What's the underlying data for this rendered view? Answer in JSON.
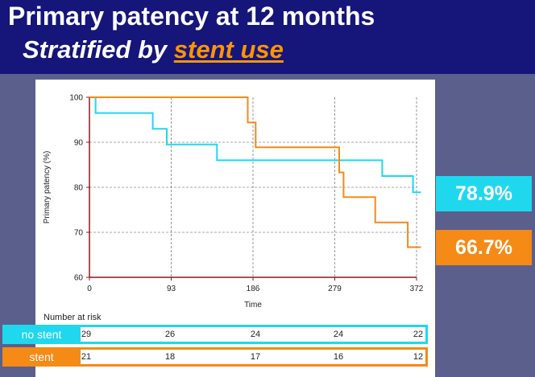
{
  "header": {
    "title": "Primary patency at 12 months",
    "subtitle_prefix": "Stratified by ",
    "subtitle_highlight": "stent use"
  },
  "colors": {
    "header_bg": "#15157a",
    "background": "#5b5f8c",
    "no_stent": "#1fd8ee",
    "stent": "#f58a16"
  },
  "chart_data": {
    "type": "line",
    "step": true,
    "xlabel": "Time",
    "ylabel": "Primary patency (%)",
    "xlim": [
      0,
      372
    ],
    "ylim": [
      60,
      100
    ],
    "xticks": [
      0,
      93,
      186,
      279,
      372
    ],
    "yticks": [
      60,
      70,
      80,
      90,
      100
    ],
    "grid": "vertical dashed at xticks, horizontal dashed at 70/80/90",
    "series": [
      {
        "name": "no stent",
        "color": "#1fd8ee",
        "x": [
          0,
          7,
          7,
          72,
          72,
          88,
          88,
          145,
          145,
          333,
          333,
          368,
          368,
          377
        ],
        "y": [
          100,
          100,
          96.5,
          96.5,
          93,
          93,
          89.5,
          89.5,
          86,
          86,
          82.5,
          82.5,
          78.9,
          78.9
        ]
      },
      {
        "name": "stent",
        "color": "#f58a16",
        "x": [
          0,
          180,
          180,
          189,
          189,
          284,
          284,
          289,
          289,
          325,
          325,
          362,
          362,
          377
        ],
        "y": [
          100,
          100,
          94.4,
          94.4,
          88.9,
          88.9,
          83.3,
          83.3,
          77.8,
          77.8,
          72.2,
          72.2,
          66.7,
          66.7
        ]
      }
    ],
    "final_values": {
      "no stent": "78.9%",
      "stent": "66.7%"
    }
  },
  "risk_table": {
    "title": "Number at risk",
    "rows": [
      {
        "label": "no stent",
        "values": [
          "29",
          "26",
          "24",
          "24",
          "22"
        ]
      },
      {
        "label": "stent",
        "values": [
          "21",
          "18",
          "17",
          "16",
          "12"
        ]
      }
    ]
  }
}
